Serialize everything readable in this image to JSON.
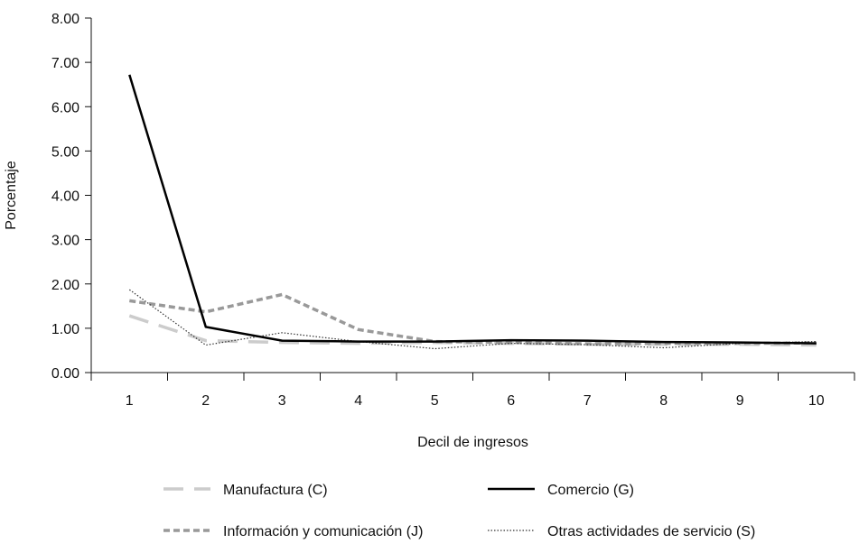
{
  "chart_data": {
    "type": "line",
    "title": "",
    "xlabel": "Decil de ingresos",
    "ylabel": "Porcentaje",
    "x": [
      "1",
      "2",
      "3",
      "4",
      "5",
      "6",
      "7",
      "8",
      "9",
      "10"
    ],
    "ylim": [
      0,
      8
    ],
    "yticks": [
      "0.00",
      "1.00",
      "2.00",
      "3.00",
      "4.00",
      "5.00",
      "6.00",
      "7.00",
      "8.00"
    ],
    "grid": false,
    "legend_position": "bottom",
    "series": [
      {
        "name": "Manufactura (C)",
        "values": [
          1.28,
          0.72,
          0.68,
          0.66,
          0.68,
          0.66,
          0.64,
          0.64,
          0.64,
          0.62
        ],
        "color": "#cccccc",
        "style": "long-dash"
      },
      {
        "name": "Comercio (G)",
        "values": [
          6.72,
          1.03,
          0.72,
          0.7,
          0.7,
          0.73,
          0.72,
          0.69,
          0.68,
          0.66
        ],
        "color": "#000000",
        "style": "solid"
      },
      {
        "name": "Información y comunicación (J)",
        "values": [
          1.62,
          1.37,
          1.76,
          0.97,
          0.7,
          0.68,
          0.65,
          0.66,
          0.66,
          0.67
        ],
        "color": "#999999",
        "style": "dash"
      },
      {
        "name": "Otras actividades de servicio (S)",
        "values": [
          1.87,
          0.62,
          0.9,
          0.7,
          0.54,
          0.66,
          0.63,
          0.56,
          0.66,
          0.7
        ],
        "color": "#333333",
        "style": "dotted"
      }
    ]
  }
}
